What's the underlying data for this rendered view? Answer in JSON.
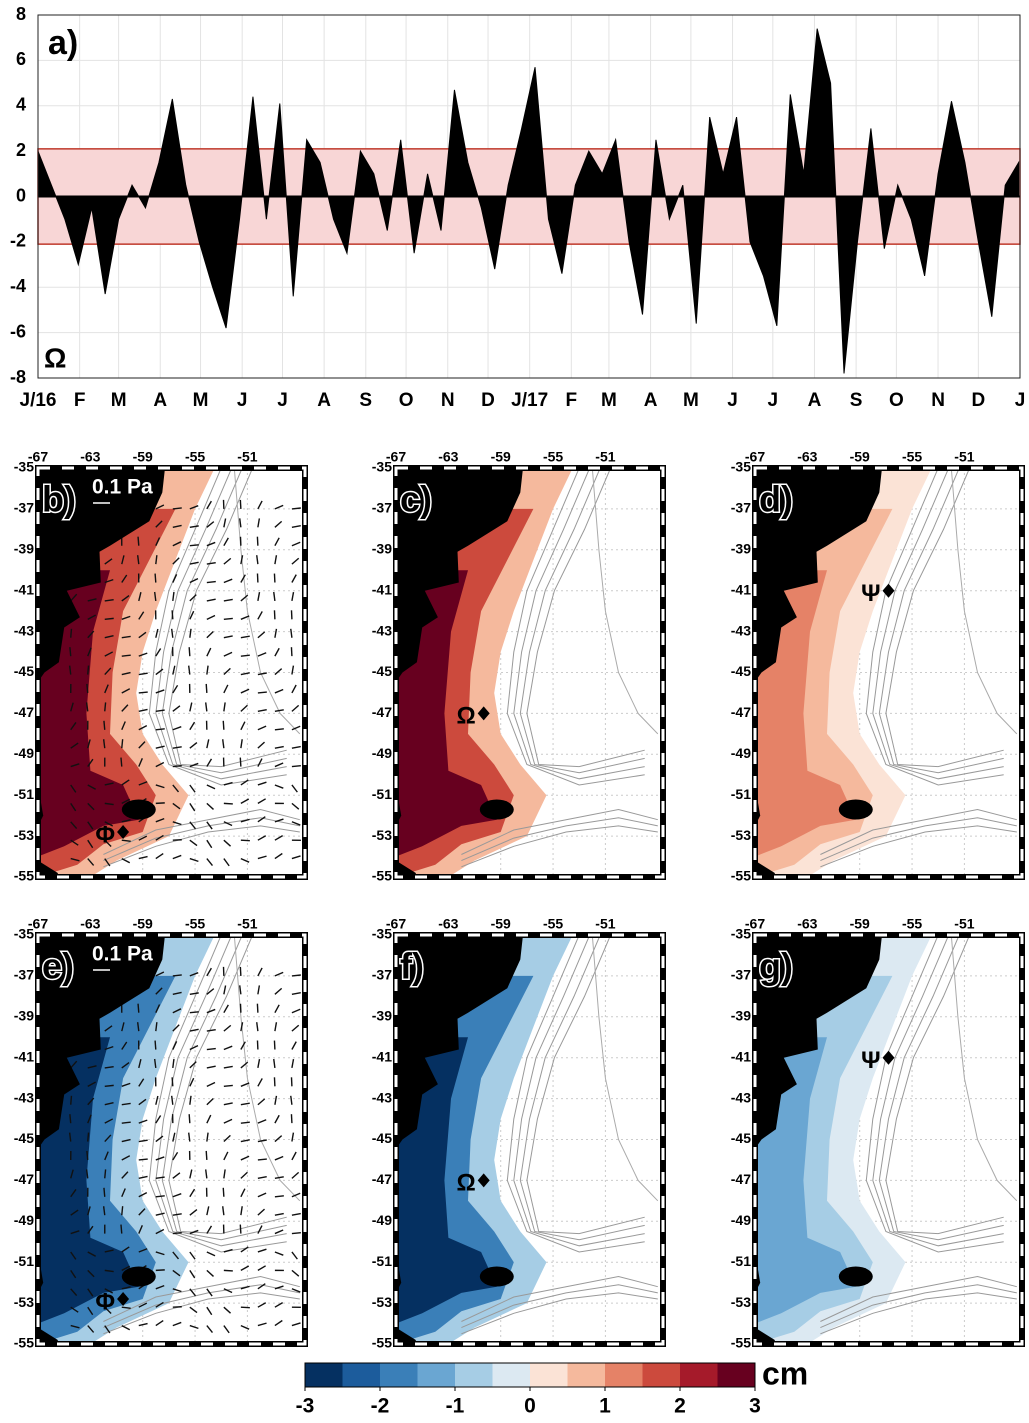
{
  "chart_data": [
    {
      "type": "area",
      "title": "a)",
      "annotation": "Ω",
      "color": "#000000",
      "band": [
        -2.1,
        2.1
      ],
      "band_color": "#f8d6d6",
      "x": [
        0,
        10,
        20,
        30,
        40,
        50,
        60,
        70,
        80,
        90,
        100,
        110,
        120,
        130,
        140,
        150,
        160,
        170,
        180,
        190,
        200,
        210,
        220,
        230,
        240,
        250,
        260,
        270,
        280,
        290,
        300,
        310,
        320,
        330,
        340,
        350,
        360,
        370,
        380,
        390,
        400,
        410,
        420,
        430,
        440,
        450,
        460,
        470,
        480,
        490,
        500,
        510,
        520,
        530,
        540,
        550,
        560,
        570,
        580,
        590,
        600,
        610,
        620,
        630,
        640,
        650,
        660,
        670,
        680,
        690,
        700,
        710,
        720,
        730
      ],
      "values": [
        2,
        0.5,
        -1,
        -3,
        -0.5,
        -4.3,
        -1,
        0.5,
        -0.5,
        1.5,
        4.3,
        0.5,
        -2,
        -4,
        -5.8,
        -1,
        4.4,
        -1,
        4.1,
        -4.4,
        2.5,
        1.5,
        -1,
        -2.5,
        2,
        1,
        -1.5,
        2.5,
        -2.5,
        1,
        -1.5,
        4.7,
        1.5,
        -0.5,
        -3.2,
        0.5,
        3,
        5.7,
        -1,
        -3.4,
        0.5,
        2,
        1,
        2.5,
        -2,
        -5.2,
        2.5,
        -1,
        0.5,
        -5.6,
        3.5,
        1,
        3.5,
        -2,
        -3.5,
        -5.7,
        4.5,
        1,
        7.4,
        5,
        -7.8,
        -2,
        3,
        -2.3,
        0.5,
        -1,
        -3.5,
        1,
        4.2,
        1.5,
        -2,
        -5.3,
        0.5,
        1.5
      ],
      "xlim": [
        0,
        731
      ],
      "xticks": [
        {
          "value": 0,
          "label": "J/16"
        },
        {
          "value": 31,
          "label": "F"
        },
        {
          "value": 60,
          "label": "M"
        },
        {
          "value": 91,
          "label": "A"
        },
        {
          "value": 121,
          "label": "M"
        },
        {
          "value": 152,
          "label": "J"
        },
        {
          "value": 182,
          "label": "J"
        },
        {
          "value": 213,
          "label": "A"
        },
        {
          "value": 244,
          "label": "S"
        },
        {
          "value": 274,
          "label": "O"
        },
        {
          "value": 305,
          "label": "N"
        },
        {
          "value": 335,
          "label": "D"
        },
        {
          "value": 366,
          "label": "J/17"
        },
        {
          "value": 397,
          "label": "F"
        },
        {
          "value": 425,
          "label": "M"
        },
        {
          "value": 456,
          "label": "A"
        },
        {
          "value": 486,
          "label": "M"
        },
        {
          "value": 517,
          "label": "J"
        },
        {
          "value": 547,
          "label": "J"
        },
        {
          "value": 578,
          "label": "A"
        },
        {
          "value": 609,
          "label": "S"
        },
        {
          "value": 639,
          "label": "O"
        },
        {
          "value": 670,
          "label": "N"
        },
        {
          "value": 700,
          "label": "D"
        },
        {
          "value": 731,
          "label": "J"
        }
      ],
      "ylim": [
        -8,
        8
      ],
      "yticks": [
        -8,
        -6,
        -4,
        -2,
        0,
        2,
        4,
        6,
        8
      ],
      "grid": true
    },
    {
      "type": "map",
      "title": "b)",
      "scale_label": "0.1 Pa",
      "marker": {
        "label": "Φ",
        "lon": -60.5,
        "lat": -52.8
      },
      "colors": [
        "#f5b99d",
        "#cc4a3d",
        "#67001f"
      ],
      "xlim": [
        -67,
        -46.6
      ],
      "ylim": [
        -55,
        -35
      ],
      "xticks": [
        -67,
        -63,
        -59,
        -55,
        -51
      ],
      "yticks": [
        -35,
        -37,
        -39,
        -41,
        -43,
        -45,
        -47,
        -49,
        -51,
        -53,
        -55
      ]
    },
    {
      "type": "map",
      "title": "c)",
      "marker": {
        "label": "Ω",
        "lon": -60.3,
        "lat": -47
      },
      "colors": [
        "#f5b99d",
        "#cc4a3d",
        "#67001f"
      ],
      "xlim": [
        -67,
        -46.6
      ],
      "ylim": [
        -55,
        -35
      ],
      "xticks": [
        -67,
        -63,
        -59,
        -55,
        -51
      ],
      "yticks": [
        -35,
        -37,
        -39,
        -41,
        -43,
        -45,
        -47,
        -49,
        -51,
        -53,
        -55
      ]
    },
    {
      "type": "map",
      "title": "d)",
      "marker": {
        "label": "Ψ",
        "lon": -56.8,
        "lat": -41
      },
      "colors": [
        "#fbe3d6",
        "#f5b99d",
        "#e58267"
      ],
      "xlim": [
        -67,
        -46.6
      ],
      "ylim": [
        -55,
        -35
      ],
      "xticks": [
        -67,
        -63,
        -59,
        -55,
        -51
      ],
      "yticks": [
        -35,
        -37,
        -39,
        -41,
        -43,
        -45,
        -47,
        -49,
        -51,
        -53,
        -55
      ]
    },
    {
      "type": "map",
      "title": "e)",
      "scale_label": "0.1 Pa",
      "marker": {
        "label": "Φ",
        "lon": -60.5,
        "lat": -52.8
      },
      "colors": [
        "#a6cde5",
        "#3a7fb8",
        "#053061"
      ],
      "xlim": [
        -67,
        -46.6
      ],
      "ylim": [
        -55,
        -35
      ],
      "xticks": [
        -67,
        -63,
        -59,
        -55,
        -51
      ],
      "yticks": [
        -35,
        -37,
        -39,
        -41,
        -43,
        -45,
        -47,
        -49,
        -51,
        -53,
        -55
      ]
    },
    {
      "type": "map",
      "title": "f)",
      "marker": {
        "label": "Ω",
        "lon": -60.3,
        "lat": -47
      },
      "colors": [
        "#a6cde5",
        "#3a7fb8",
        "#053061"
      ],
      "xlim": [
        -67,
        -46.6
      ],
      "ylim": [
        -55,
        -35
      ],
      "xticks": [
        -67,
        -63,
        -59,
        -55,
        -51
      ],
      "yticks": [
        -35,
        -37,
        -39,
        -41,
        -43,
        -45,
        -47,
        -49,
        -51,
        -53,
        -55
      ]
    },
    {
      "type": "map",
      "title": "g)",
      "marker": {
        "label": "Ψ",
        "lon": -56.8,
        "lat": -41
      },
      "colors": [
        "#dce9f2",
        "#a6cde5",
        "#6aa6d2"
      ],
      "xlim": [
        -67,
        -46.6
      ],
      "ylim": [
        -55,
        -35
      ],
      "xticks": [
        -67,
        -63,
        -59,
        -55,
        -51
      ],
      "yticks": [
        -35,
        -37,
        -39,
        -41,
        -43,
        -45,
        -47,
        -49,
        -51,
        -53,
        -55
      ]
    },
    {
      "type": "colorbar",
      "unit": "cm",
      "lim": [
        -3,
        3
      ],
      "ticks": [
        -3,
        -2,
        -1,
        0,
        1,
        2,
        3
      ],
      "colors": [
        "#053061",
        "#1c5c9c",
        "#3a7fb8",
        "#6aa6d2",
        "#a6cde5",
        "#dce9f2",
        "#fbe3d6",
        "#f5b99d",
        "#e58267",
        "#cc4a3d",
        "#a51a2a",
        "#67001f"
      ]
    }
  ]
}
